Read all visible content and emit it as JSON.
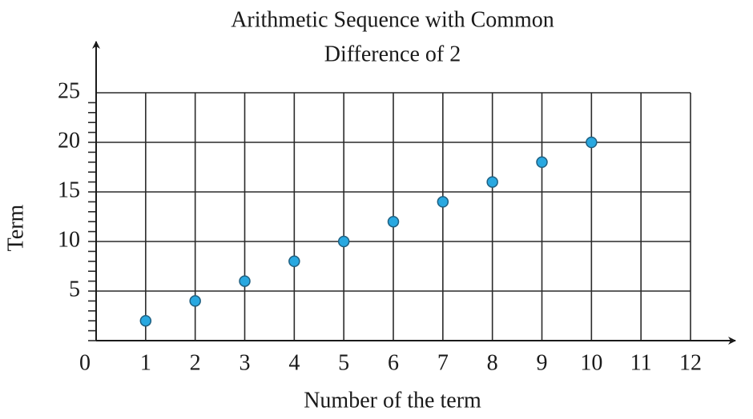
{
  "chart_data": {
    "type": "scatter",
    "title": [
      "Arithmetic Sequence with Common",
      "Difference of 2"
    ],
    "x_label": "Number of the term",
    "y_label": "Term",
    "x": [
      1,
      2,
      3,
      4,
      5,
      6,
      7,
      8,
      9,
      10
    ],
    "series": [
      {
        "color": "#29a8e0",
        "values": [
          2,
          4,
          6,
          8,
          10,
          12,
          14,
          16,
          18,
          20
        ]
      }
    ],
    "xlim": [
      0,
      12
    ],
    "xticks": [
      0,
      1,
      2,
      3,
      4,
      5,
      6,
      7,
      8,
      9,
      10,
      11,
      12
    ],
    "ylim": [
      0,
      25
    ],
    "yticks": [
      5,
      10,
      15,
      20,
      25
    ],
    "grid": true
  }
}
